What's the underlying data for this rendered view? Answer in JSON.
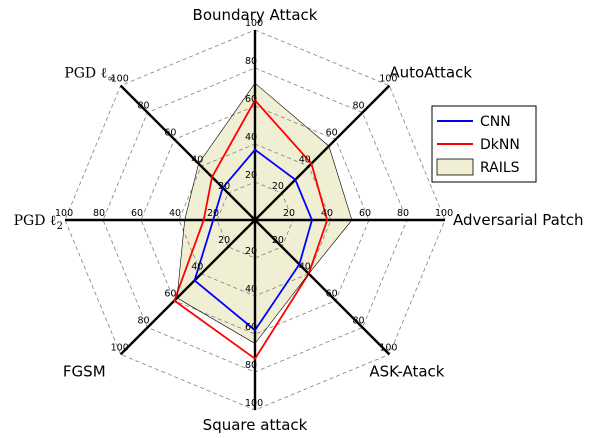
{
  "chart_data": {
    "type": "radar",
    "title": "",
    "axes": [
      {
        "label": "Boundary Attack",
        "math": false
      },
      {
        "label": "AutoAttack",
        "math": false
      },
      {
        "label": "Adversarial Patch",
        "math": false
      },
      {
        "label": "ASK-Atack",
        "math": false
      },
      {
        "label": "Square attack",
        "math": false
      },
      {
        "label": "FGSM",
        "math": false
      },
      {
        "label": "PGD ℓ₂",
        "math": true,
        "base": "PGD ℓ",
        "sub": "2"
      },
      {
        "label": "PGD ℓ∞",
        "math": true,
        "base": "PGD ℓ",
        "sub": "∞"
      }
    ],
    "range": [
      0,
      100
    ],
    "ticks": [
      20,
      40,
      60,
      80,
      100
    ],
    "tick_labels": [
      "20",
      "40",
      "60",
      "80",
      "100"
    ],
    "grid": "dashed octagons",
    "legend_position": "right",
    "series": [
      {
        "name": "CNN",
        "color": "#0000ff",
        "fill": "none",
        "values": [
          37,
          30,
          30,
          33,
          58,
          45,
          22,
          24
        ]
      },
      {
        "name": "DkNN",
        "color": "#ff0000",
        "fill": "none",
        "values": [
          63,
          42,
          38,
          40,
          73,
          60,
          27,
          32
        ]
      },
      {
        "name": "RAILS",
        "color": "#000000",
        "fill": "#f0efd4",
        "values": [
          72,
          55,
          51,
          40,
          65,
          58,
          37,
          42
        ]
      }
    ]
  }
}
